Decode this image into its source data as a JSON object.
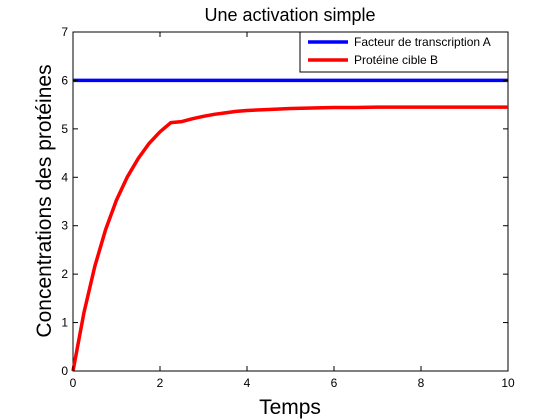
{
  "chart_data": {
    "type": "line",
    "title": "Une activation simple",
    "xlabel": "Temps",
    "ylabel": "Concentrations des protéines",
    "xlim": [
      0,
      10
    ],
    "ylim": [
      0,
      7
    ],
    "xticks": [
      0,
      2,
      4,
      6,
      8,
      10
    ],
    "yticks": [
      0,
      1,
      2,
      3,
      4,
      5,
      6,
      7
    ],
    "grid": false,
    "legend_position": "top-right",
    "x": [
      0,
      0.25,
      0.5,
      0.75,
      1,
      1.25,
      1.5,
      1.75,
      2,
      2.25,
      2.5,
      2.75,
      3,
      3.25,
      3.5,
      3.75,
      4,
      4.5,
      5,
      5.5,
      6,
      6.5,
      7,
      7.5,
      8,
      8.5,
      9,
      9.5,
      10
    ],
    "series": [
      {
        "name": "Facteur de transcription A",
        "color": "#0000ff",
        "values": [
          6,
          6,
          6,
          6,
          6,
          6,
          6,
          6,
          6,
          6,
          6,
          6,
          6,
          6,
          6,
          6,
          6,
          6,
          6,
          6,
          6,
          6,
          6,
          6,
          6,
          6,
          6,
          6,
          6
        ]
      },
      {
        "name": "Protéine cible B",
        "color": "#ff0000",
        "values": [
          0,
          1.2,
          2.16,
          2.92,
          3.53,
          4.01,
          4.39,
          4.7,
          4.94,
          5.13,
          5.15,
          5.21,
          5.26,
          5.3,
          5.33,
          5.36,
          5.38,
          5.4,
          5.42,
          5.43,
          5.44,
          5.44,
          5.45,
          5.45,
          5.45,
          5.45,
          5.45,
          5.45,
          5.45
        ]
      }
    ]
  }
}
